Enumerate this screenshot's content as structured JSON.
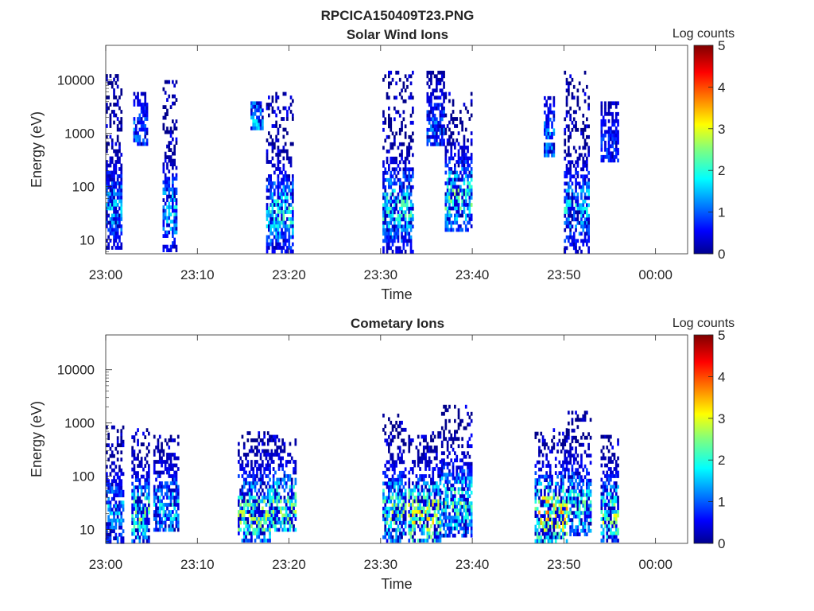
{
  "figure": {
    "title": "RPCICA150409T23.PNG"
  },
  "colorbar": {
    "label": "Log counts",
    "ticks": [
      "0",
      "1",
      "2",
      "3",
      "4",
      "5"
    ],
    "range": [
      0,
      5
    ],
    "colormap": "jet"
  },
  "chart_data": [
    {
      "type": "heatmap",
      "title": "Solar Wind Ions",
      "xlabel": "Time",
      "ylabel": "Energy (eV)",
      "yscale": "log",
      "ylim": [
        5.5,
        45000
      ],
      "xlim_minutes": [
        0,
        63.5
      ],
      "x_ticks": [
        "23:00",
        "23:10",
        "23:20",
        "23:30",
        "23:40",
        "23:50",
        "00:00"
      ],
      "x_tick_minutes": [
        0,
        10,
        20,
        30,
        40,
        50,
        60
      ],
      "y_ticks": [
        "10",
        "100",
        "1000",
        "10000"
      ],
      "y_tick_values": [
        10,
        100,
        1000,
        10000
      ],
      "colorbar_label": "Log counts",
      "clim": [
        0,
        5
      ],
      "bursts": [
        {
          "t0": 0.0,
          "t1": 1.6,
          "emin": 7,
          "emax": 13000,
          "peak": 2.0
        },
        {
          "t0": 3.0,
          "t1": 4.6,
          "emin": 600,
          "emax": 6000,
          "peak": 1.5
        },
        {
          "t0": 6.2,
          "t1": 7.8,
          "emin": 6,
          "emax": 10000,
          "peak": 2.2
        },
        {
          "t0": 15.8,
          "t1": 17.0,
          "emin": 1200,
          "emax": 4000,
          "peak": 2.0
        },
        {
          "t0": 17.5,
          "t1": 20.4,
          "emin": 6,
          "emax": 6000,
          "peak": 2.5
        },
        {
          "t0": 30.2,
          "t1": 33.6,
          "emin": 6,
          "emax": 15000,
          "peak": 2.6
        },
        {
          "t0": 35.0,
          "t1": 37.0,
          "emin": 600,
          "emax": 15000,
          "peak": 1.5
        },
        {
          "t0": 37.0,
          "t1": 40.0,
          "emin": 15,
          "emax": 6000,
          "peak": 2.8
        },
        {
          "t0": 47.8,
          "t1": 49.0,
          "emin": 400,
          "emax": 5000,
          "peak": 1.8
        },
        {
          "t0": 50.0,
          "t1": 52.8,
          "emin": 6,
          "emax": 15000,
          "peak": 2.2
        },
        {
          "t0": 54.0,
          "t1": 55.9,
          "emin": 300,
          "emax": 4000,
          "peak": 1.2
        }
      ]
    },
    {
      "type": "heatmap",
      "title": "Cometary Ions",
      "xlabel": "Time",
      "ylabel": "Energy (eV)",
      "yscale": "log",
      "ylim": [
        5.5,
        45000
      ],
      "xlim_minutes": [
        0,
        63.5
      ],
      "x_ticks": [
        "23:00",
        "23:10",
        "23:20",
        "23:30",
        "23:40",
        "23:50",
        "00:00"
      ],
      "x_tick_minutes": [
        0,
        10,
        20,
        30,
        40,
        50,
        60
      ],
      "y_ticks": [
        "10",
        "100",
        "1000",
        "10000"
      ],
      "y_tick_values": [
        10,
        100,
        1000,
        10000
      ],
      "colorbar_label": "Log counts",
      "clim": [
        0,
        5
      ],
      "bursts": [
        {
          "t0": 0.0,
          "t1": 1.8,
          "emin": 6,
          "emax": 900,
          "peak": 2.0
        },
        {
          "t0": 2.8,
          "t1": 4.8,
          "emin": 6,
          "emax": 800,
          "peak": 2.8
        },
        {
          "t0": 5.2,
          "t1": 8.0,
          "emin": 10,
          "emax": 600,
          "peak": 2.2
        },
        {
          "t0": 14.4,
          "t1": 17.8,
          "emin": 6,
          "emax": 700,
          "peak": 3.2
        },
        {
          "t0": 17.8,
          "t1": 20.6,
          "emin": 10,
          "emax": 600,
          "peak": 3.0
        },
        {
          "t0": 30.2,
          "t1": 32.8,
          "emin": 6,
          "emax": 1500,
          "peak": 3.0
        },
        {
          "t0": 33.0,
          "t1": 36.6,
          "emin": 6,
          "emax": 700,
          "peak": 3.6
        },
        {
          "t0": 36.6,
          "t1": 40.0,
          "emin": 8,
          "emax": 2200,
          "peak": 2.8
        },
        {
          "t0": 46.8,
          "t1": 50.4,
          "emin": 6,
          "emax": 800,
          "peak": 4.0
        },
        {
          "t0": 50.4,
          "t1": 53.0,
          "emin": 8,
          "emax": 1700,
          "peak": 2.6
        },
        {
          "t0": 54.0,
          "t1": 56.0,
          "emin": 6,
          "emax": 600,
          "peak": 3.2
        }
      ]
    }
  ]
}
